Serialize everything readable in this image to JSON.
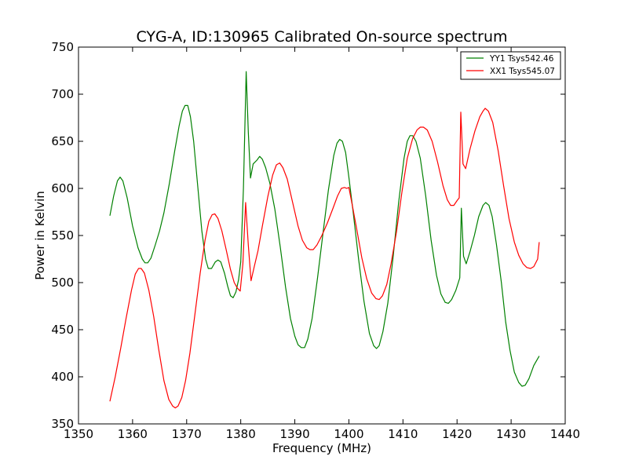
{
  "chart_data": {
    "type": "line",
    "title": "CYG-A, ID:130965 Calibrated On-source spectrum",
    "xlabel": "Frequency (MHz)",
    "ylabel": "Power in Kelvin",
    "xlim": [
      1350,
      1440
    ],
    "ylim": [
      350,
      750
    ],
    "xticks": [
      1350,
      1360,
      1370,
      1380,
      1390,
      1400,
      1410,
      1420,
      1430,
      1440
    ],
    "yticks": [
      350,
      400,
      450,
      500,
      550,
      600,
      650,
      700,
      750
    ],
    "grid": false,
    "legend_position": "top-right",
    "series": [
      {
        "name": "YY1 Tsys542.46",
        "color": "#008000",
        "points": [
          [
            1355.8,
            571
          ],
          [
            1356.5,
            592
          ],
          [
            1357.2,
            608
          ],
          [
            1357.7,
            612
          ],
          [
            1358.2,
            608
          ],
          [
            1359.0,
            590
          ],
          [
            1360.0,
            560
          ],
          [
            1361.0,
            537
          ],
          [
            1361.8,
            525
          ],
          [
            1362.3,
            521
          ],
          [
            1362.8,
            521
          ],
          [
            1363.4,
            526
          ],
          [
            1364.2,
            540
          ],
          [
            1365.0,
            555
          ],
          [
            1365.8,
            574
          ],
          [
            1366.8,
            605
          ],
          [
            1367.8,
            640
          ],
          [
            1368.6,
            666
          ],
          [
            1369.2,
            682
          ],
          [
            1369.7,
            688
          ],
          [
            1370.2,
            688
          ],
          [
            1370.7,
            676
          ],
          [
            1371.3,
            650
          ],
          [
            1372.0,
            605
          ],
          [
            1372.8,
            555
          ],
          [
            1373.5,
            525
          ],
          [
            1374.0,
            515
          ],
          [
            1374.6,
            515
          ],
          [
            1375.3,
            522
          ],
          [
            1375.8,
            524
          ],
          [
            1376.3,
            522
          ],
          [
            1377.0,
            510
          ],
          [
            1377.6,
            496
          ],
          [
            1378.1,
            486
          ],
          [
            1378.6,
            484
          ],
          [
            1379.1,
            490
          ],
          [
            1379.6,
            503
          ],
          [
            1380.0,
            522
          ],
          [
            1380.5,
            600
          ],
          [
            1381.0,
            724
          ],
          [
            1381.4,
            660
          ],
          [
            1381.8,
            611
          ],
          [
            1382.3,
            626
          ],
          [
            1383.0,
            630
          ],
          [
            1383.5,
            634
          ],
          [
            1384.0,
            631
          ],
          [
            1384.6,
            622
          ],
          [
            1385.4,
            605
          ],
          [
            1386.3,
            578
          ],
          [
            1387.3,
            538
          ],
          [
            1388.3,
            495
          ],
          [
            1389.2,
            462
          ],
          [
            1390.0,
            443
          ],
          [
            1390.6,
            434
          ],
          [
            1391.2,
            431
          ],
          [
            1391.8,
            431
          ],
          [
            1392.4,
            440
          ],
          [
            1393.2,
            462
          ],
          [
            1394.2,
            505
          ],
          [
            1395.2,
            552
          ],
          [
            1396.2,
            598
          ],
          [
            1397.2,
            635
          ],
          [
            1397.8,
            648
          ],
          [
            1398.3,
            652
          ],
          [
            1398.8,
            650
          ],
          [
            1399.4,
            638
          ],
          [
            1400.0,
            612
          ],
          [
            1400.8,
            574
          ],
          [
            1401.8,
            525
          ],
          [
            1402.8,
            480
          ],
          [
            1403.8,
            446
          ],
          [
            1404.6,
            433
          ],
          [
            1405.1,
            430
          ],
          [
            1405.6,
            433
          ],
          [
            1406.3,
            448
          ],
          [
            1407.2,
            478
          ],
          [
            1408.2,
            528
          ],
          [
            1409.2,
            585
          ],
          [
            1410.2,
            632
          ],
          [
            1410.8,
            650
          ],
          [
            1411.3,
            656
          ],
          [
            1411.8,
            656
          ],
          [
            1412.4,
            650
          ],
          [
            1413.2,
            632
          ],
          [
            1414.2,
            592
          ],
          [
            1415.2,
            545
          ],
          [
            1416.2,
            508
          ],
          [
            1417.0,
            488
          ],
          [
            1417.8,
            479
          ],
          [
            1418.4,
            478
          ],
          [
            1419.0,
            482
          ],
          [
            1419.8,
            492
          ],
          [
            1420.5,
            505
          ],
          [
            1420.8,
            579
          ],
          [
            1421.2,
            528
          ],
          [
            1421.7,
            520
          ],
          [
            1422.4,
            533
          ],
          [
            1423.2,
            550
          ],
          [
            1424.0,
            570
          ],
          [
            1424.8,
            582
          ],
          [
            1425.3,
            585
          ],
          [
            1425.9,
            582
          ],
          [
            1426.5,
            570
          ],
          [
            1427.3,
            540
          ],
          [
            1428.2,
            500
          ],
          [
            1429.0,
            458
          ],
          [
            1429.8,
            428
          ],
          [
            1430.6,
            405
          ],
          [
            1431.4,
            394
          ],
          [
            1432.0,
            390
          ],
          [
            1432.6,
            391
          ],
          [
            1433.3,
            398
          ],
          [
            1434.2,
            412
          ],
          [
            1435.2,
            422
          ]
        ]
      },
      {
        "name": "XX1 Tsys545.07",
        "color": "#ff0000",
        "points": [
          [
            1355.8,
            374
          ],
          [
            1356.8,
            400
          ],
          [
            1357.8,
            430
          ],
          [
            1358.8,
            462
          ],
          [
            1359.8,
            492
          ],
          [
            1360.5,
            509
          ],
          [
            1361.1,
            515
          ],
          [
            1361.6,
            515
          ],
          [
            1362.2,
            510
          ],
          [
            1363.0,
            492
          ],
          [
            1363.9,
            464
          ],
          [
            1364.8,
            430
          ],
          [
            1365.8,
            396
          ],
          [
            1366.7,
            376
          ],
          [
            1367.4,
            369
          ],
          [
            1367.9,
            367
          ],
          [
            1368.4,
            369
          ],
          [
            1369.1,
            378
          ],
          [
            1369.8,
            396
          ],
          [
            1370.6,
            425
          ],
          [
            1371.5,
            465
          ],
          [
            1372.5,
            510
          ],
          [
            1373.4,
            545
          ],
          [
            1374.1,
            565
          ],
          [
            1374.7,
            572
          ],
          [
            1375.2,
            573
          ],
          [
            1375.8,
            568
          ],
          [
            1376.5,
            555
          ],
          [
            1377.3,
            535
          ],
          [
            1378.1,
            514
          ],
          [
            1378.8,
            500
          ],
          [
            1379.4,
            494
          ],
          [
            1379.9,
            491
          ],
          [
            1380.4,
            520
          ],
          [
            1380.9,
            585
          ],
          [
            1381.4,
            540
          ],
          [
            1381.9,
            502
          ],
          [
            1382.5,
            517
          ],
          [
            1383.2,
            534
          ],
          [
            1384.0,
            560
          ],
          [
            1385.0,
            591
          ],
          [
            1385.9,
            614
          ],
          [
            1386.6,
            625
          ],
          [
            1387.2,
            627
          ],
          [
            1387.8,
            622
          ],
          [
            1388.6,
            610
          ],
          [
            1389.6,
            585
          ],
          [
            1390.6,
            560
          ],
          [
            1391.4,
            545
          ],
          [
            1392.2,
            537
          ],
          [
            1392.8,
            535
          ],
          [
            1393.4,
            535
          ],
          [
            1394.1,
            540
          ],
          [
            1395.0,
            550
          ],
          [
            1396.0,
            563
          ],
          [
            1397.0,
            578
          ],
          [
            1397.9,
            592
          ],
          [
            1398.6,
            600
          ],
          [
            1399.2,
            601
          ],
          [
            1399.6,
            600
          ],
          [
            1400.0,
            601
          ],
          [
            1400.6,
            583
          ],
          [
            1401.5,
            555
          ],
          [
            1402.4,
            526
          ],
          [
            1403.3,
            504
          ],
          [
            1404.2,
            489
          ],
          [
            1405.0,
            483
          ],
          [
            1405.6,
            482
          ],
          [
            1406.2,
            486
          ],
          [
            1407.0,
            498
          ],
          [
            1407.8,
            520
          ],
          [
            1408.8,
            554
          ],
          [
            1409.8,
            596
          ],
          [
            1410.8,
            632
          ],
          [
            1411.8,
            653
          ],
          [
            1412.6,
            662
          ],
          [
            1413.2,
            665
          ],
          [
            1413.8,
            665
          ],
          [
            1414.5,
            662
          ],
          [
            1415.4,
            650
          ],
          [
            1416.4,
            628
          ],
          [
            1417.4,
            603
          ],
          [
            1418.2,
            588
          ],
          [
            1418.8,
            582
          ],
          [
            1419.4,
            582
          ],
          [
            1420.0,
            587
          ],
          [
            1420.4,
            590
          ],
          [
            1420.7,
            681
          ],
          [
            1421.1,
            626
          ],
          [
            1421.6,
            621
          ],
          [
            1422.4,
            642
          ],
          [
            1423.3,
            661
          ],
          [
            1424.2,
            676
          ],
          [
            1424.8,
            682
          ],
          [
            1425.2,
            685
          ],
          [
            1425.8,
            682
          ],
          [
            1426.6,
            670
          ],
          [
            1427.6,
            640
          ],
          [
            1428.6,
            603
          ],
          [
            1429.6,
            568
          ],
          [
            1430.6,
            543
          ],
          [
            1431.4,
            529
          ],
          [
            1432.2,
            520
          ],
          [
            1432.9,
            516
          ],
          [
            1433.6,
            515
          ],
          [
            1434.2,
            517
          ],
          [
            1434.9,
            525
          ],
          [
            1435.2,
            543
          ]
        ]
      }
    ]
  }
}
